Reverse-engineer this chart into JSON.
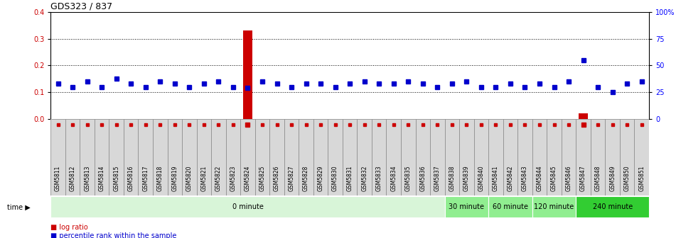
{
  "title": "GDS323 / 837",
  "samples": [
    "GSM5811",
    "GSM5812",
    "GSM5813",
    "GSM5814",
    "GSM5815",
    "GSM5816",
    "GSM5817",
    "GSM5818",
    "GSM5819",
    "GSM5820",
    "GSM5821",
    "GSM5822",
    "GSM5823",
    "GSM5824",
    "GSM5825",
    "GSM5826",
    "GSM5827",
    "GSM5828",
    "GSM5829",
    "GSM5830",
    "GSM5831",
    "GSM5832",
    "GSM5833",
    "GSM5834",
    "GSM5835",
    "GSM5836",
    "GSM5837",
    "GSM5838",
    "GSM5839",
    "GSM5840",
    "GSM5841",
    "GSM5842",
    "GSM5843",
    "GSM5844",
    "GSM5845",
    "GSM5846",
    "GSM5847",
    "GSM5848",
    "GSM5849",
    "GSM5850",
    "GSM5851"
  ],
  "log_ratio": [
    0.0,
    0.0,
    0.0,
    0.0,
    0.0,
    0.0,
    0.0,
    0.0,
    0.0,
    0.0,
    0.0,
    0.0,
    0.0,
    0.33,
    0.0,
    0.0,
    0.0,
    0.0,
    0.0,
    0.0,
    0.0,
    0.0,
    0.0,
    0.0,
    0.0,
    0.0,
    0.0,
    0.0,
    0.0,
    0.0,
    0.0,
    0.0,
    0.0,
    0.0,
    0.0,
    0.0,
    0.02,
    0.0,
    0.0,
    0.0,
    0.0
  ],
  "percentile_rank": [
    0.33,
    0.3,
    0.35,
    0.3,
    0.38,
    0.33,
    0.3,
    0.35,
    0.33,
    0.3,
    0.33,
    0.35,
    0.3,
    0.29,
    0.35,
    0.33,
    0.3,
    0.33,
    0.33,
    0.3,
    0.33,
    0.35,
    0.33,
    0.33,
    0.35,
    0.33,
    0.3,
    0.33,
    0.35,
    0.3,
    0.3,
    0.33,
    0.3,
    0.33,
    0.3,
    0.35,
    0.55,
    0.3,
    0.25,
    0.33,
    0.35
  ],
  "ylim_left": [
    0.0,
    0.4
  ],
  "ylim_right": [
    0.0,
    1.0
  ],
  "yticks_left": [
    0.0,
    0.1,
    0.2,
    0.3,
    0.4
  ],
  "yticks_right": [
    0.0,
    0.25,
    0.5,
    0.75,
    1.0
  ],
  "ytick_labels_right": [
    "0",
    "25",
    "50",
    "75",
    "100%"
  ],
  "time_groups": [
    {
      "label": "0 minute",
      "start": 0,
      "end": 27,
      "color": "#d8f5d8"
    },
    {
      "label": "30 minute",
      "start": 27,
      "end": 30,
      "color": "#90ee90"
    },
    {
      "label": "60 minute",
      "start": 30,
      "end": 33,
      "color": "#90ee90"
    },
    {
      "label": "120 minute",
      "start": 33,
      "end": 36,
      "color": "#90ee90"
    },
    {
      "label": "240 minute",
      "start": 36,
      "end": 41,
      "color": "#32cd32"
    }
  ],
  "bar_color_red": "#cc0000",
  "bar_color_blue": "#0000cc",
  "label_box_color": "#d8d8d8",
  "label_box_edge": "#888888"
}
